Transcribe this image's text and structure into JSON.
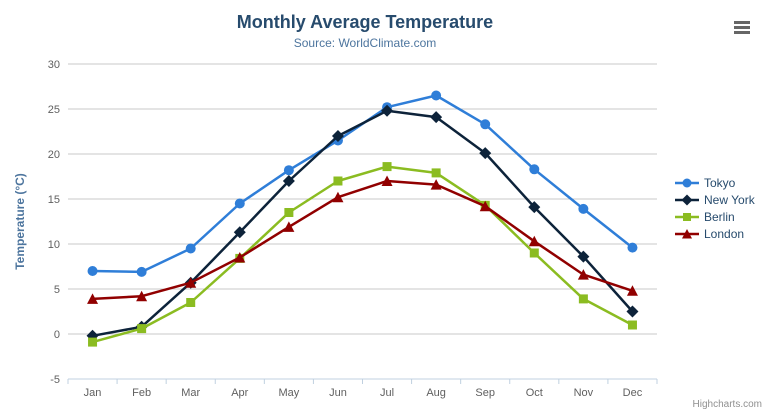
{
  "chart_data": {
    "type": "line",
    "title": "Monthly Average Temperature",
    "subtitle": "Source: WorldClimate.com",
    "categories": [
      "Jan",
      "Feb",
      "Mar",
      "Apr",
      "May",
      "Jun",
      "Jul",
      "Aug",
      "Sep",
      "Oct",
      "Nov",
      "Dec"
    ],
    "xlabel": "",
    "ylabel": "Temperature (°C)",
    "ylim": [
      -5,
      30
    ],
    "yticks": [
      30,
      25,
      20,
      15,
      10,
      5,
      0,
      -5
    ],
    "grid": "horizontal",
    "legend_position": "right",
    "series": [
      {
        "name": "Tokyo",
        "color": "#2f7ed8",
        "marker": "circle",
        "values": [
          7.0,
          6.9,
          9.5,
          14.5,
          18.2,
          21.5,
          25.2,
          26.5,
          23.3,
          18.3,
          13.9,
          9.6
        ]
      },
      {
        "name": "New York",
        "color": "#0d233a",
        "marker": "diamond",
        "values": [
          -0.2,
          0.8,
          5.7,
          11.3,
          17.0,
          22.0,
          24.8,
          24.1,
          20.1,
          14.1,
          8.6,
          2.5
        ]
      },
      {
        "name": "Berlin",
        "color": "#8bbc21",
        "marker": "square",
        "values": [
          -0.9,
          0.6,
          3.5,
          8.4,
          13.5,
          17.0,
          18.6,
          17.9,
          14.3,
          9.0,
          3.9,
          1.0
        ]
      },
      {
        "name": "London",
        "color": "#910000",
        "marker": "triangle",
        "values": [
          3.9,
          4.2,
          5.7,
          8.5,
          11.9,
          15.2,
          17.0,
          16.6,
          14.2,
          10.3,
          6.6,
          4.8
        ]
      }
    ]
  },
  "colors": {
    "title": "#274b6d",
    "subtitle": "#4d759e",
    "axis_labels": "#606060",
    "axis_title": "#4d759e",
    "grid_line": "#c8c8c8",
    "axis_line": "#c0d0e0",
    "legend_text": "#274b6d",
    "credits_text": "#909090",
    "menu_icon": "#666666"
  },
  "context_button": {
    "icon": "hamburger-menu-icon"
  },
  "credits": {
    "label": "Highcharts.com"
  }
}
